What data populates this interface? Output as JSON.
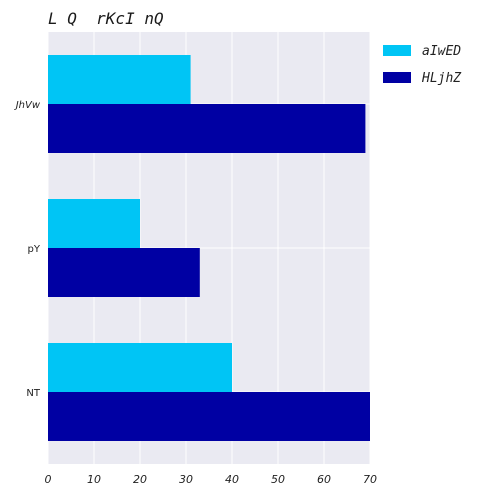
{
  "chart_data": {
    "type": "bar",
    "orientation": "horizontal",
    "title": "L Q  rKcI nQ",
    "categories": [
      "JhVw",
      "pY",
      "NT"
    ],
    "series": [
      {
        "name": "aIwED",
        "color": "#00c5f5",
        "values": [
          31,
          20,
          40
        ]
      },
      {
        "name": "HLjhZ",
        "color": "#0000a3",
        "values": [
          69,
          33,
          70
        ]
      }
    ],
    "xlim": [
      0,
      70
    ],
    "xticks": [
      0,
      10,
      20,
      30,
      40,
      50,
      60,
      70
    ],
    "grid": true,
    "legend_position": "top-right",
    "plot_background": "#eaeaf2"
  }
}
